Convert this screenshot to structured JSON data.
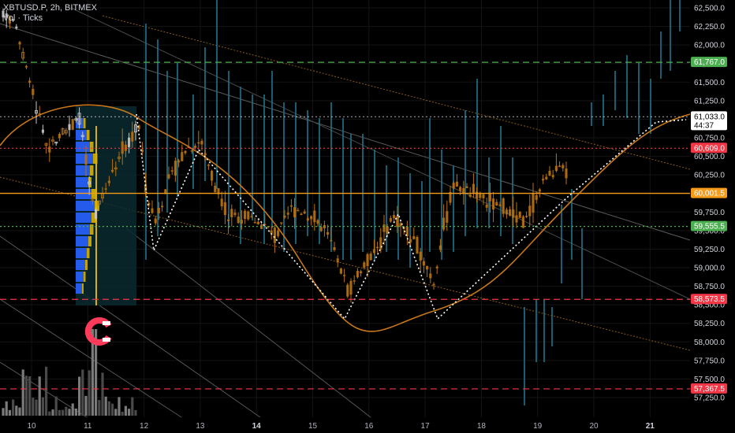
{
  "header": {
    "symbol_line": "XBTUSD.P, 2h, BITMEX",
    "indicator_line": "Vol · Ticks"
  },
  "colors": {
    "background": "#000000",
    "candle": "#b8720f",
    "candle_light": "#c9c9c9",
    "wick_blue": "#1c6f86",
    "green_level": "#4caf50",
    "red_level": "#f23645",
    "orange_level": "#f59c1a",
    "volume": "#6e6e6e",
    "box_fill": "#0b2a30",
    "profile_blue": "#2962ff",
    "profile_yellow": "#d9b200",
    "magnet": "#ff3b5c"
  },
  "icons": {
    "magnet": "magnet-icon"
  },
  "chart_data": {
    "type": "candlestick",
    "title": "XBTUSD.P, 2h, BITMEX",
    "ylim": [
      57200,
      62650
    ],
    "price_axis_labels": [
      "62,500.0",
      "62,250.0",
      "62,000.0",
      "61,750.0",
      "61,500.0",
      "61,250.0",
      "61,000.0",
      "60,750.0",
      "60,500.0",
      "60,250.0",
      "60,000.0",
      "59,750.0",
      "59,500.0",
      "59,250.0",
      "59,000.0",
      "58,750.0",
      "58,500.0",
      "58,250.0",
      "58,000.0",
      "57,750.0",
      "57,500.0",
      "57,250.0"
    ],
    "price_axis_values": [
      62500,
      62250,
      62000,
      61750,
      61500,
      61250,
      61000,
      60750,
      60500,
      60250,
      60000,
      59750,
      59500,
      59250,
      59000,
      58750,
      58500,
      58250,
      58000,
      57750,
      57500,
      57250
    ],
    "date_labels": [
      "10",
      "11",
      "12",
      "13",
      "14",
      "15",
      "16",
      "17",
      "18",
      "19",
      "20",
      "21"
    ],
    "date_major": [
      "14",
      "21"
    ],
    "levels": [
      {
        "name": "green-level-top",
        "value": 61767.0,
        "label": "61,767.0",
        "color": "#4caf50",
        "style": "dash"
      },
      {
        "name": "current-price",
        "value": 61033.0,
        "label": "61,033.0",
        "sublabel": "44:37",
        "color": "#ffffff",
        "style": "dot"
      },
      {
        "name": "red-level-upper",
        "value": 60609.0,
        "label": "60,609.0",
        "color": "#f23645",
        "style": "dot"
      },
      {
        "name": "orange-level",
        "value": 60001.5,
        "label": "60,001.5",
        "color": "#f59c1a",
        "style": "solid"
      },
      {
        "name": "green-level-lower",
        "value": 59555.5,
        "label": "59,555.5",
        "color": "#4caf50",
        "style": "dot"
      },
      {
        "name": "red-level-mid",
        "value": 58573.5,
        "label": "58,573.5",
        "color": "#f23645",
        "style": "dash"
      },
      {
        "name": "red-level-bottom",
        "value": 57367.5,
        "label": "57,367.5",
        "color": "#f23645",
        "style": "dash"
      }
    ]
  }
}
